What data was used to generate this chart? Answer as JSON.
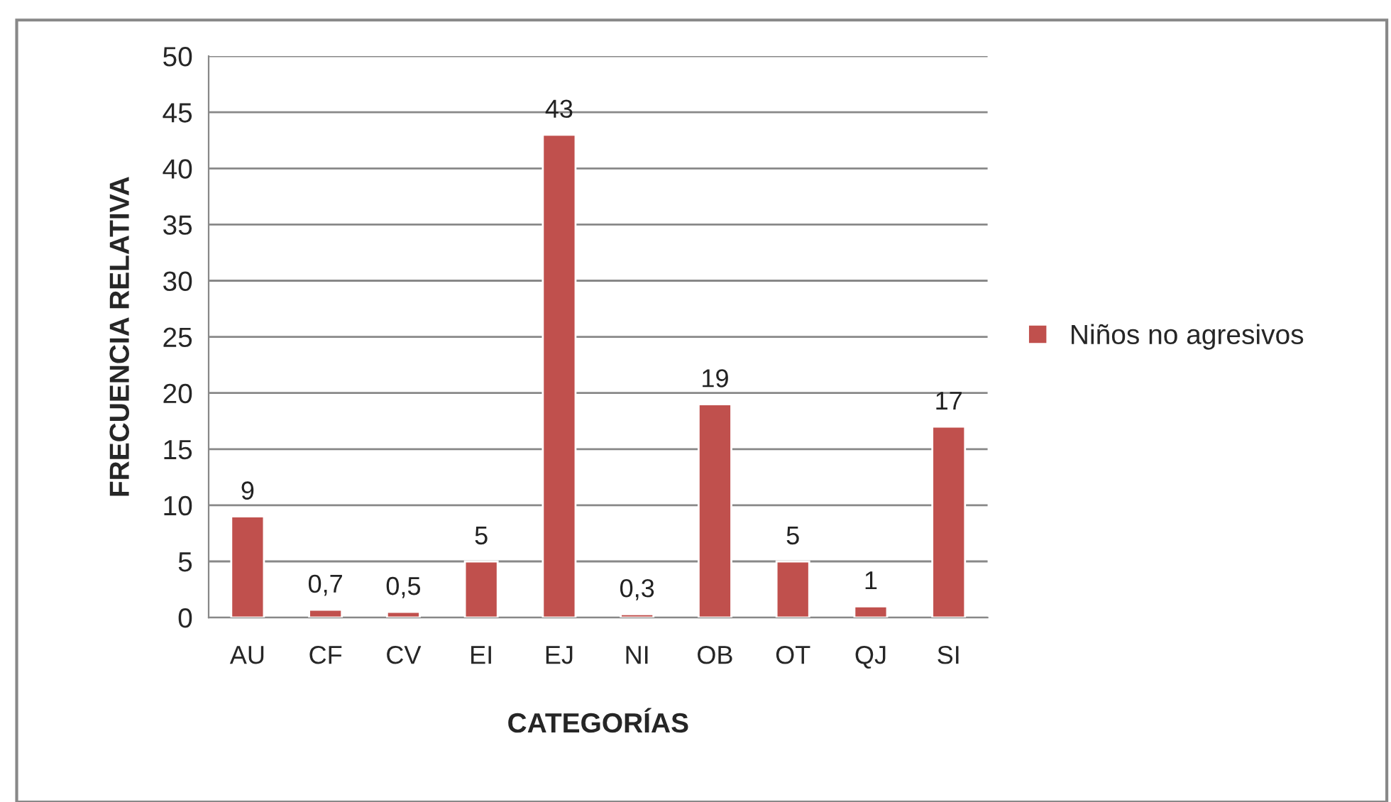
{
  "chart_data": {
    "type": "bar",
    "xlabel": "CATEGORÍAS",
    "ylabel": "FRECUENCIA RELATIVA",
    "categories": [
      "AU",
      "CF",
      "CV",
      "EI",
      "EJ",
      "NI",
      "OB",
      "OT",
      "QJ",
      "SI"
    ],
    "series": [
      {
        "name": "Niños no agresivos",
        "color": "#c0504d",
        "values": [
          9,
          0.7,
          0.5,
          5,
          43,
          0.3,
          19,
          5,
          1,
          17
        ],
        "value_labels": [
          "9",
          "0,7",
          "0,5",
          "5",
          "43",
          "0,3",
          "19",
          "5",
          "1",
          "17"
        ]
      }
    ],
    "ylim": [
      0,
      50
    ],
    "yticks": [
      0,
      5,
      10,
      15,
      20,
      25,
      30,
      35,
      40,
      45,
      50
    ],
    "grid": "y",
    "legend": "right"
  }
}
